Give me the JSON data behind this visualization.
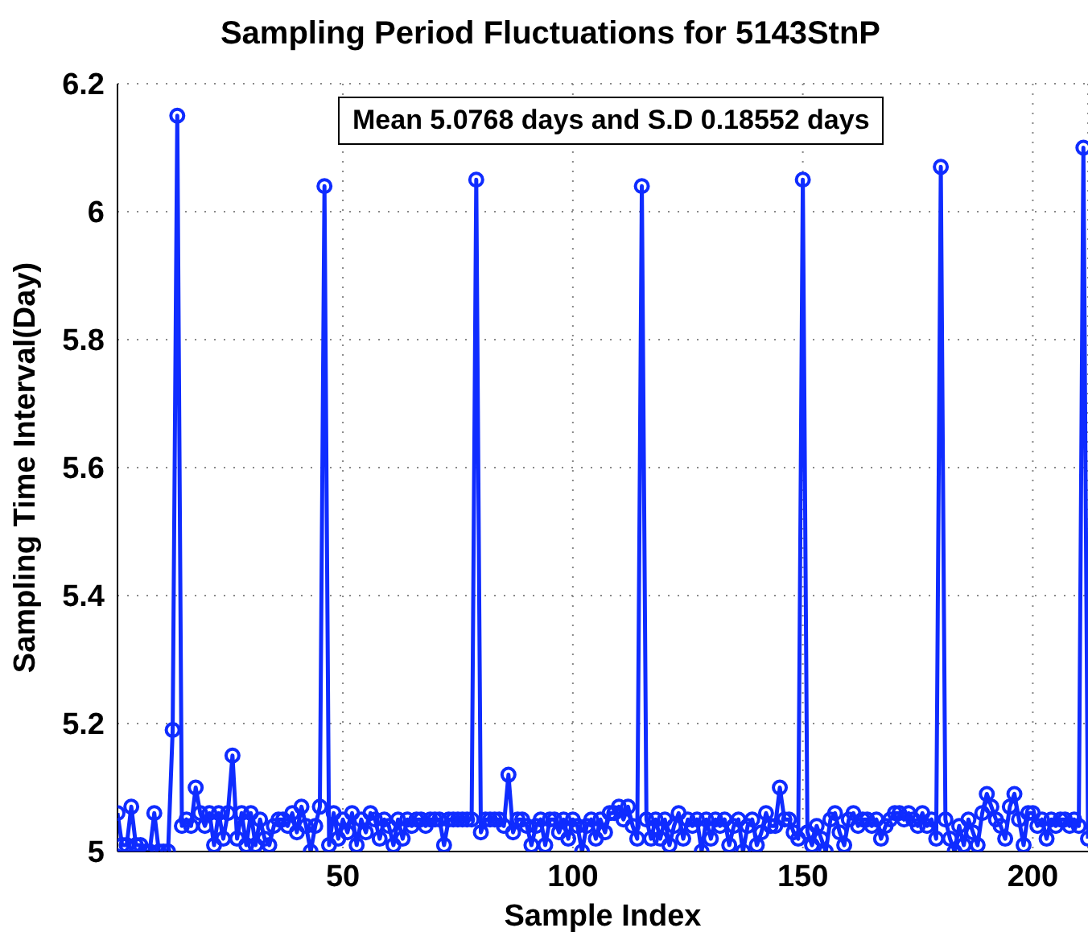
{
  "chart_data": {
    "type": "line",
    "title": "Sampling Period Fluctuations for 5143StnP",
    "xlabel": "Sample Index",
    "ylabel": "Sampling Time Interval(Day)",
    "annotations": [
      "Mean 5.0768 days and S.D 0.18552 days"
    ],
    "x": [
      1,
      2,
      3,
      4,
      5,
      6,
      7,
      8,
      9,
      10,
      11,
      12,
      13,
      14,
      15,
      16,
      17,
      18,
      19,
      20,
      21,
      22,
      23,
      24,
      25,
      26,
      27,
      28,
      29,
      30,
      31,
      32,
      33,
      34,
      35,
      36,
      37,
      38,
      39,
      40,
      41,
      42,
      43,
      44,
      45,
      46,
      47,
      48,
      49,
      50,
      51,
      52,
      53,
      54,
      55,
      56,
      57,
      58,
      59,
      60,
      61,
      62,
      63,
      64,
      65,
      66,
      67,
      68,
      69,
      70,
      71,
      72,
      73,
      74,
      75,
      76,
      77,
      78,
      79,
      80,
      81,
      82,
      83,
      84,
      85,
      86,
      87,
      88,
      89,
      90,
      91,
      92,
      93,
      94,
      95,
      96,
      97,
      98,
      99,
      100,
      101,
      102,
      103,
      104,
      105,
      106,
      107,
      108,
      109,
      110,
      111,
      112,
      113,
      114,
      115,
      116,
      117,
      118,
      119,
      120,
      121,
      122,
      123,
      124,
      125,
      126,
      127,
      128,
      129,
      130,
      131,
      132,
      133,
      134,
      135,
      136,
      137,
      138,
      139,
      140,
      141,
      142,
      143,
      144,
      145,
      146,
      147,
      148,
      149,
      150,
      151,
      152,
      153,
      154,
      155,
      156,
      157,
      158,
      159,
      160,
      161,
      162,
      163,
      164,
      165,
      166,
      167,
      168,
      169,
      170,
      171,
      172,
      173,
      174,
      175,
      176,
      177,
      178,
      179,
      180,
      181,
      182,
      183,
      184,
      185,
      186,
      187,
      188,
      189,
      190,
      191,
      192,
      193,
      194,
      195,
      196,
      197,
      198,
      199,
      200,
      201,
      202,
      203,
      204,
      205,
      206,
      207,
      208,
      209,
      210,
      211,
      212
    ],
    "series": [
      {
        "color": "#0f2cff",
        "values": [
          5.06,
          5.01,
          5.01,
          5.07,
          5.01,
          5.01,
          5.0,
          5.0,
          5.06,
          5.0,
          5.0,
          5.0,
          5.19,
          6.15,
          5.04,
          5.05,
          5.04,
          5.1,
          5.06,
          5.04,
          5.06,
          5.01,
          5.06,
          5.02,
          5.06,
          5.15,
          5.02,
          5.06,
          5.01,
          5.06,
          5.01,
          5.05,
          5.02,
          5.01,
          5.04,
          5.05,
          5.05,
          5.04,
          5.06,
          5.03,
          5.07,
          5.04,
          5.0,
          5.04,
          5.07,
          6.04,
          5.01,
          5.06,
          5.02,
          5.05,
          5.03,
          5.06,
          5.01,
          5.05,
          5.03,
          5.06,
          5.05,
          5.02,
          5.05,
          5.04,
          5.01,
          5.05,
          5.02,
          5.05,
          5.04,
          5.05,
          5.05,
          5.04,
          5.05,
          5.05,
          5.05,
          5.01,
          5.05,
          5.05,
          5.05,
          5.05,
          5.05,
          5.05,
          6.05,
          5.03,
          5.05,
          5.05,
          5.05,
          5.05,
          5.04,
          5.12,
          5.03,
          5.05,
          5.05,
          5.04,
          5.01,
          5.04,
          5.05,
          5.01,
          5.05,
          5.05,
          5.03,
          5.05,
          5.02,
          5.05,
          5.04,
          5.0,
          5.04,
          5.05,
          5.02,
          5.05,
          5.03,
          5.06,
          5.06,
          5.07,
          5.05,
          5.07,
          5.04,
          5.02,
          6.04,
          5.05,
          5.02,
          5.05,
          5.02,
          5.05,
          5.01,
          5.04,
          5.06,
          5.02,
          5.05,
          5.04,
          5.05,
          5.0,
          5.05,
          5.02,
          5.05,
          5.04,
          5.05,
          5.01,
          5.04,
          5.05,
          5.0,
          5.04,
          5.05,
          5.01,
          5.03,
          5.06,
          5.04,
          5.04,
          5.1,
          5.05,
          5.05,
          5.03,
          5.02,
          6.05,
          5.03,
          5.01,
          5.04,
          5.02,
          5.0,
          5.05,
          5.06,
          5.03,
          5.01,
          5.05,
          5.06,
          5.04,
          5.05,
          5.05,
          5.04,
          5.05,
          5.02,
          5.04,
          5.05,
          5.06,
          5.06,
          5.05,
          5.06,
          5.05,
          5.04,
          5.06,
          5.04,
          5.05,
          5.02,
          6.07,
          5.05,
          5.02,
          5.0,
          5.04,
          5.01,
          5.05,
          5.03,
          5.01,
          5.06,
          5.09,
          5.07,
          5.05,
          5.04,
          5.02,
          5.07,
          5.09,
          5.05,
          5.01,
          5.06,
          5.06,
          5.04,
          5.05,
          5.02,
          5.05,
          5.04,
          5.05,
          5.05,
          5.04,
          5.05,
          5.04,
          6.1,
          5.02
        ]
      }
    ],
    "xlim": [
      1,
      212
    ],
    "xticks": [
      50,
      100,
      150,
      200
    ],
    "ylim": [
      5,
      6.2
    ],
    "yticks": [
      5,
      5.2,
      5.4,
      5.6,
      5.8,
      6,
      6.2
    ],
    "grid": true,
    "marker": "circle",
    "line_style": "solid",
    "legend": false
  }
}
